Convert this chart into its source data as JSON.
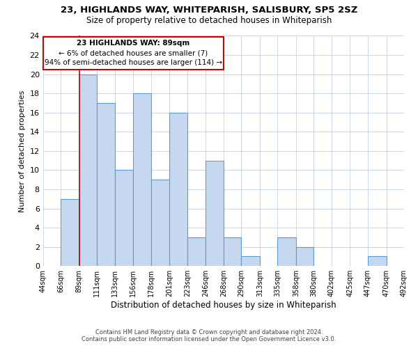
{
  "title": "23, HIGHLANDS WAY, WHITEPARISH, SALISBURY, SP5 2SZ",
  "subtitle": "Size of property relative to detached houses in Whiteparish",
  "xlabel": "Distribution of detached houses by size in Whiteparish",
  "ylabel": "Number of detached properties",
  "bin_labels": [
    "44sqm",
    "66sqm",
    "89sqm",
    "111sqm",
    "133sqm",
    "156sqm",
    "178sqm",
    "201sqm",
    "223sqm",
    "246sqm",
    "268sqm",
    "290sqm",
    "313sqm",
    "335sqm",
    "358sqm",
    "380sqm",
    "402sqm",
    "425sqm",
    "447sqm",
    "470sqm",
    "492sqm"
  ],
  "bin_edges": [
    44,
    66,
    89,
    111,
    133,
    156,
    178,
    201,
    223,
    246,
    268,
    290,
    313,
    335,
    358,
    380,
    402,
    425,
    447,
    470,
    492
  ],
  "bar_heights": [
    0,
    7,
    20,
    17,
    10,
    18,
    9,
    16,
    3,
    11,
    3,
    1,
    0,
    3,
    2,
    0,
    0,
    0,
    1,
    0
  ],
  "bar_color": "#c5d8f0",
  "bar_edge_color": "#5b9bd5",
  "vline_x": 89,
  "vline_color": "#cc0000",
  "annotation_text_line1": "23 HIGHLANDS WAY: 89sqm",
  "annotation_text_line2": "← 6% of detached houses are smaller (7)",
  "annotation_text_line3": "94% of semi-detached houses are larger (114) →",
  "annotation_box_color": "#cc0000",
  "ylim": [
    0,
    24
  ],
  "yticks": [
    0,
    2,
    4,
    6,
    8,
    10,
    12,
    14,
    16,
    18,
    20,
    22,
    24
  ],
  "footer_line1": "Contains HM Land Registry data © Crown copyright and database right 2024.",
  "footer_line2": "Contains public sector information licensed under the Open Government Licence v3.0.",
  "background_color": "#ffffff",
  "grid_color": "#c8d8e8"
}
